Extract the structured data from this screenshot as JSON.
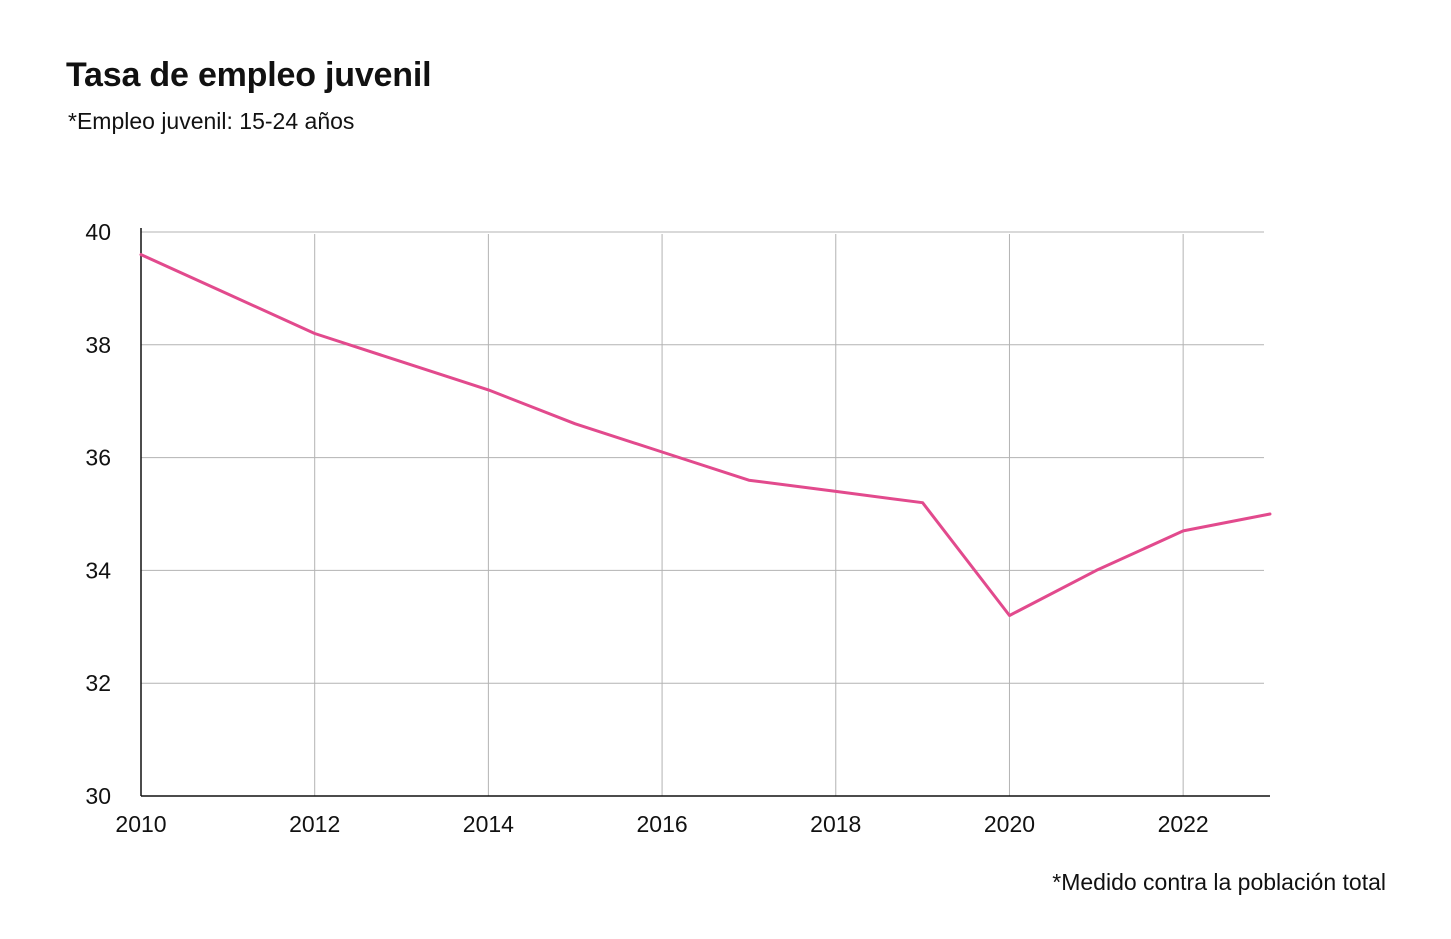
{
  "header": {
    "title": "Tasa de empleo juvenil",
    "subtitle": "*Empleo juvenil: 15-24 años"
  },
  "footer": {
    "note": "*Medido contra la población total"
  },
  "chart_data": {
    "type": "line",
    "title": "Tasa de empleo juvenil",
    "subtitle": "*Empleo juvenil: 15-24 años",
    "xlabel": "",
    "ylabel": "",
    "xlim": [
      2010,
      2023
    ],
    "ylim": [
      30,
      40
    ],
    "xticks": [
      2010,
      2012,
      2014,
      2016,
      2018,
      2020,
      2022
    ],
    "yticks": [
      30,
      32,
      34,
      36,
      38,
      40
    ],
    "grid": true,
    "legend": "none",
    "series": [
      {
        "color": "#e24a8d",
        "x": [
          2010,
          2011,
          2012,
          2013,
          2014,
          2015,
          2016,
          2017,
          2018,
          2019,
          2020,
          2021,
          2022,
          2023
        ],
        "y": [
          39.6,
          38.9,
          38.2,
          37.7,
          37.2,
          36.6,
          36.1,
          35.6,
          35.4,
          35.2,
          33.2,
          34.0,
          34.7,
          35.0
        ]
      }
    ]
  }
}
